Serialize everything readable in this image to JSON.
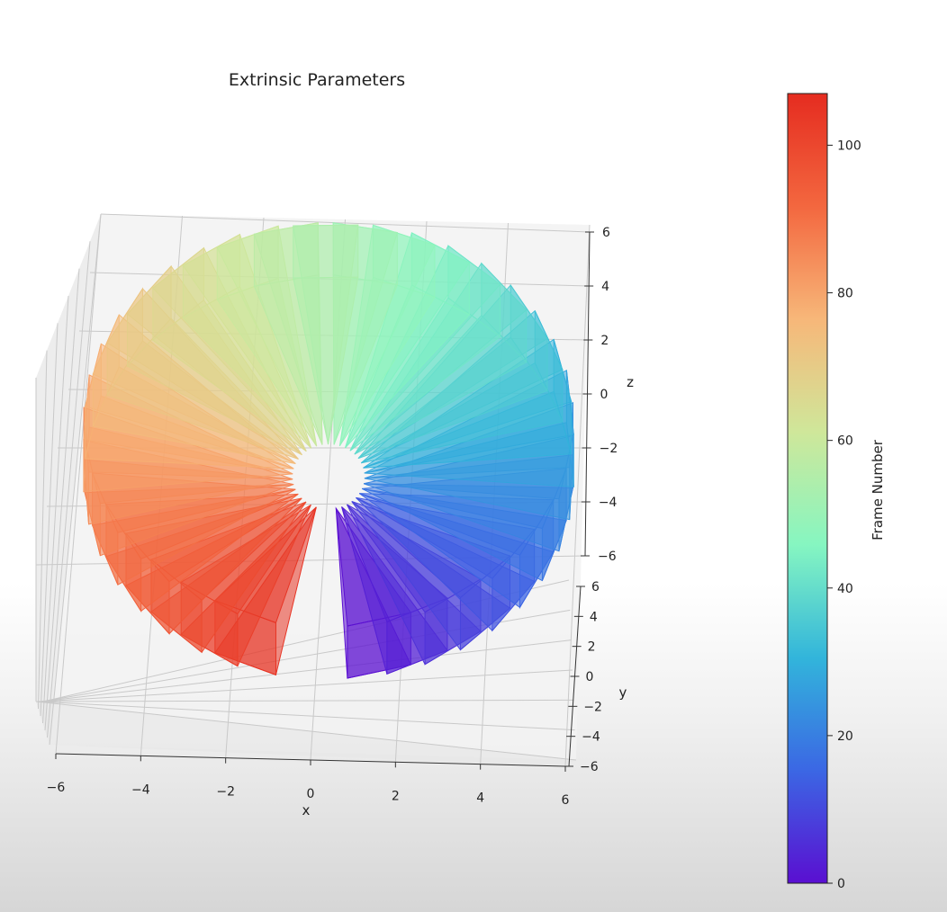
{
  "chart_data": {
    "type": "3d-pyramids",
    "title": "Extrinsic Parameters",
    "xlabel": "x",
    "ylabel": "y",
    "zlabel": "z",
    "x_ticks": [
      -6,
      -4,
      -2,
      0,
      2,
      4,
      6
    ],
    "y_ticks": [
      6,
      4,
      2,
      0,
      -2,
      -4,
      -6
    ],
    "z_ticks": [
      6,
      4,
      2,
      0,
      -2,
      -4,
      -6
    ],
    "xlim": [
      -6,
      6
    ],
    "ylim": [
      -6,
      6
    ],
    "zlim": [
      -6,
      6
    ],
    "grid": true,
    "colorbar": {
      "label": "Frame Number",
      "ticks": [
        0,
        20,
        40,
        60,
        80,
        100
      ],
      "range": [
        0,
        107
      ],
      "colormap": "rainbow",
      "colors": [
        "#5a0fd1",
        "#3b67e4",
        "#32b5db",
        "#86f6c1",
        "#cfe79a",
        "#f7b779",
        "#f3673f",
        "#e52c20"
      ]
    },
    "frames": {
      "count": 36,
      "first_frame": 0,
      "last_frame": 105,
      "arrangement": "cameras arranged in a circle around the origin, pointing inward"
    }
  }
}
